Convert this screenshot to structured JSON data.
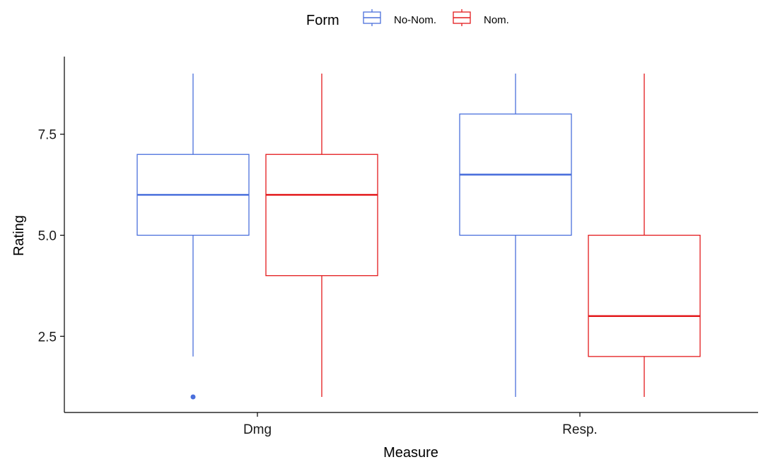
{
  "chart_data": {
    "type": "box",
    "xlabel": "Measure",
    "ylabel": "Rating",
    "categories": [
      "Dmg",
      "Resp."
    ],
    "yticks": [
      "2.5",
      "5.0",
      "7.5"
    ],
    "ylim": [
      1,
      9
    ],
    "legend": {
      "title": "Form",
      "position": "top",
      "entries": [
        {
          "label": "No-Nom.",
          "color": "#4a6fdc"
        },
        {
          "label": "Nom.",
          "color": "#e31a1c"
        }
      ]
    },
    "series": [
      {
        "name": "No-Nom.",
        "color": "#4a6fdc",
        "boxes": [
          {
            "category": "Dmg",
            "min": 2,
            "q1": 5,
            "median": 6,
            "q3": 7,
            "max": 9,
            "outliers": [
              1
            ]
          },
          {
            "category": "Resp.",
            "min": 1,
            "q1": 5,
            "median": 6.5,
            "q3": 8,
            "max": 9,
            "outliers": []
          }
        ]
      },
      {
        "name": "Nom.",
        "color": "#e31a1c",
        "boxes": [
          {
            "category": "Dmg",
            "min": 1,
            "q1": 4,
            "median": 6,
            "q3": 7,
            "max": 9,
            "outliers": []
          },
          {
            "category": "Resp.",
            "min": 1,
            "q1": 2,
            "median": 3,
            "q3": 5,
            "max": 9,
            "outliers": []
          }
        ]
      }
    ]
  }
}
